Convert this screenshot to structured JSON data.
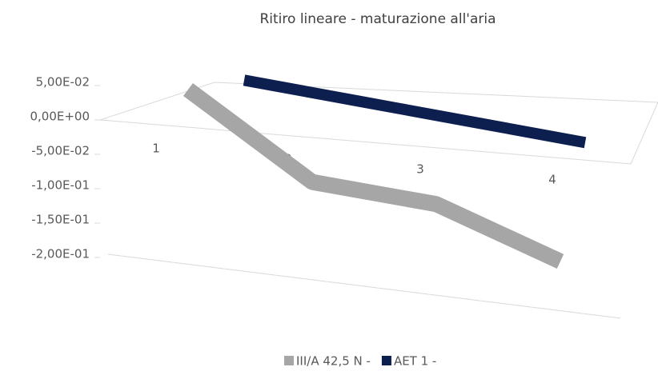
{
  "chart_data": {
    "type": "line",
    "title": "Ritiro lineare - maturazione all'aria",
    "categories": [
      "1",
      "2",
      "3",
      "4"
    ],
    "series": [
      {
        "name": "III/A 42,5 N -",
        "color": "#a6a6a6",
        "values": [
          0.04,
          -0.1,
          -0.12,
          -0.2
        ]
      },
      {
        "name": "AET 1 -",
        "color": "#0d1f4f",
        "values": [
          0,
          0,
          0,
          0
        ]
      }
    ],
    "ylim": [
      -0.2,
      0.05
    ],
    "yticks": [
      {
        "value": 0.05,
        "label": "5,00E-02"
      },
      {
        "value": 0,
        "label": "0,00E+00"
      },
      {
        "value": -0.05,
        "label": "-5,00E-02"
      },
      {
        "value": -0.1,
        "label": "-1,00E-01"
      },
      {
        "value": -0.15,
        "label": "-1,50E-01"
      },
      {
        "value": -0.2,
        "label": "-2,00E-01"
      }
    ],
    "legend": "bottom"
  }
}
